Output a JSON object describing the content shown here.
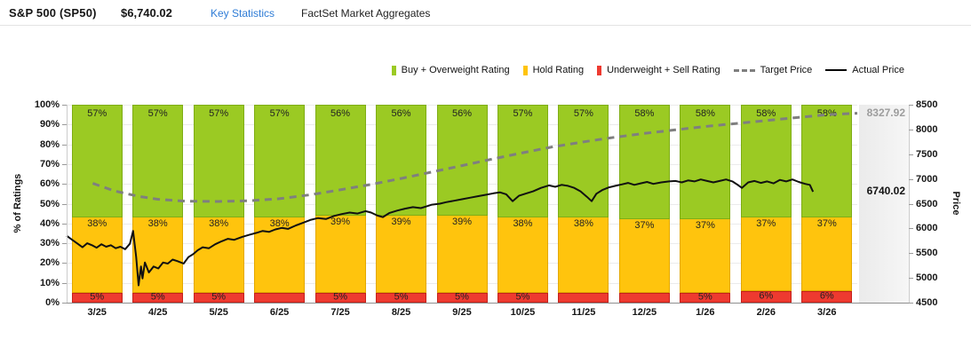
{
  "header": {
    "title": "S&P 500 (SP50)",
    "price": "$6,740.02",
    "key_statistics_label": "Key Statistics",
    "source_label": "FactSet Market Aggregates"
  },
  "legend": {
    "items": [
      {
        "label": "Buy + Overweight Rating",
        "swatch": "bar",
        "color": "#9BCA23"
      },
      {
        "label": "Hold Rating",
        "swatch": "bar",
        "color": "#FFC40D"
      },
      {
        "label": "Underweight + Sell Rating",
        "swatch": "bar",
        "color": "#EE3A30"
      },
      {
        "label": "Target Price",
        "swatch": "dashed-line",
        "color": "#7F7F7F"
      },
      {
        "label": "Actual Price",
        "swatch": "solid-line",
        "color": "#000000"
      }
    ]
  },
  "chart_data": {
    "type": "combo: stacked-bar + line",
    "categories": [
      "3/25",
      "4/25",
      "5/25",
      "6/25",
      "7/25",
      "8/25",
      "9/25",
      "10/25",
      "11/25",
      "12/25",
      "1/26",
      "2/26",
      "3/26"
    ],
    "series": [
      {
        "name": "Buy + Overweight Rating",
        "type": "bar",
        "axis": "percent",
        "color": "#9BCA23",
        "values": [
          57,
          57,
          57,
          57,
          56,
          56,
          56,
          57,
          57,
          58,
          58,
          58,
          58
        ],
        "labels": [
          "57%",
          "57%",
          "57%",
          "57%",
          "56%",
          "56%",
          "56%",
          "57%",
          "57%",
          "58%",
          "58%",
          "58%",
          "58%"
        ]
      },
      {
        "name": "Hold Rating",
        "type": "bar",
        "axis": "percent",
        "color": "#FFC40D",
        "values": [
          38,
          38,
          38,
          38,
          39,
          39,
          39,
          38,
          38,
          37,
          37,
          37,
          37
        ],
        "labels": [
          "38%",
          "38%",
          "38%",
          "38%",
          "39%",
          "39%",
          "39%",
          "38%",
          "38%",
          "37%",
          "37%",
          "37%",
          "37%"
        ]
      },
      {
        "name": "Underweight + Sell Rating",
        "type": "bar",
        "axis": "percent",
        "color": "#EE3A30",
        "values": [
          5,
          5,
          5,
          5,
          5,
          5,
          5,
          5,
          5,
          5,
          5,
          6,
          6
        ],
        "labels": [
          "5%",
          "5%",
          "5%",
          "",
          "5%",
          "5%",
          "5%",
          "5%",
          "",
          "",
          "5%",
          "6%",
          "6%"
        ]
      },
      {
        "name": "Target Price",
        "type": "line",
        "style": "dashed",
        "axis": "price",
        "color": "#7F7F7F",
        "points": [
          [
            0.033,
            6910
          ],
          [
            0.06,
            6760
          ],
          [
            0.09,
            6650
          ],
          [
            0.115,
            6590
          ],
          [
            0.15,
            6550
          ],
          [
            0.192,
            6545
          ],
          [
            0.231,
            6560
          ],
          [
            0.269,
            6600
          ],
          [
            0.308,
            6680
          ],
          [
            0.346,
            6780
          ],
          [
            0.385,
            6890
          ],
          [
            0.423,
            7010
          ],
          [
            0.462,
            7140
          ],
          [
            0.5,
            7270
          ],
          [
            0.538,
            7400
          ],
          [
            0.577,
            7530
          ],
          [
            0.615,
            7650
          ],
          [
            0.654,
            7750
          ],
          [
            0.692,
            7840
          ],
          [
            0.731,
            7920
          ],
          [
            0.769,
            7990
          ],
          [
            0.808,
            8060
          ],
          [
            0.846,
            8120
          ],
          [
            0.885,
            8180
          ],
          [
            0.923,
            8240
          ],
          [
            0.962,
            8300
          ],
          [
            1.0,
            8327.92
          ]
        ]
      },
      {
        "name": "Actual Price",
        "type": "line",
        "style": "solid",
        "axis": "price",
        "color": "#111111",
        "points": [
          [
            0.0,
            5850
          ],
          [
            0.008,
            5760
          ],
          [
            0.014,
            5690
          ],
          [
            0.02,
            5620
          ],
          [
            0.026,
            5700
          ],
          [
            0.032,
            5660
          ],
          [
            0.038,
            5610
          ],
          [
            0.044,
            5680
          ],
          [
            0.05,
            5630
          ],
          [
            0.056,
            5660
          ],
          [
            0.062,
            5600
          ],
          [
            0.068,
            5630
          ],
          [
            0.074,
            5580
          ],
          [
            0.08,
            5690
          ],
          [
            0.084,
            5950
          ],
          [
            0.088,
            5420
          ],
          [
            0.091,
            4850
          ],
          [
            0.094,
            5230
          ],
          [
            0.096,
            4990
          ],
          [
            0.099,
            5310
          ],
          [
            0.104,
            5110
          ],
          [
            0.11,
            5230
          ],
          [
            0.116,
            5190
          ],
          [
            0.122,
            5310
          ],
          [
            0.128,
            5290
          ],
          [
            0.134,
            5370
          ],
          [
            0.14,
            5340
          ],
          [
            0.148,
            5290
          ],
          [
            0.154,
            5420
          ],
          [
            0.16,
            5480
          ],
          [
            0.166,
            5560
          ],
          [
            0.172,
            5620
          ],
          [
            0.18,
            5600
          ],
          [
            0.188,
            5680
          ],
          [
            0.196,
            5740
          ],
          [
            0.204,
            5790
          ],
          [
            0.212,
            5770
          ],
          [
            0.222,
            5830
          ],
          [
            0.231,
            5870
          ],
          [
            0.24,
            5910
          ],
          [
            0.248,
            5950
          ],
          [
            0.256,
            5930
          ],
          [
            0.264,
            5980
          ],
          [
            0.272,
            6010
          ],
          [
            0.28,
            5990
          ],
          [
            0.29,
            6060
          ],
          [
            0.3,
            6120
          ],
          [
            0.308,
            6170
          ],
          [
            0.318,
            6210
          ],
          [
            0.328,
            6190
          ],
          [
            0.338,
            6250
          ],
          [
            0.348,
            6290
          ],
          [
            0.358,
            6320
          ],
          [
            0.368,
            6300
          ],
          [
            0.378,
            6350
          ],
          [
            0.385,
            6320
          ],
          [
            0.393,
            6260
          ],
          [
            0.4,
            6230
          ],
          [
            0.408,
            6310
          ],
          [
            0.418,
            6360
          ],
          [
            0.428,
            6400
          ],
          [
            0.438,
            6430
          ],
          [
            0.448,
            6410
          ],
          [
            0.456,
            6450
          ],
          [
            0.462,
            6480
          ],
          [
            0.472,
            6500
          ],
          [
            0.48,
            6530
          ],
          [
            0.49,
            6560
          ],
          [
            0.5,
            6590
          ],
          [
            0.51,
            6620
          ],
          [
            0.52,
            6650
          ],
          [
            0.53,
            6680
          ],
          [
            0.54,
            6710
          ],
          [
            0.548,
            6730
          ],
          [
            0.556,
            6690
          ],
          [
            0.564,
            6550
          ],
          [
            0.572,
            6660
          ],
          [
            0.58,
            6700
          ],
          [
            0.59,
            6750
          ],
          [
            0.6,
            6820
          ],
          [
            0.61,
            6870
          ],
          [
            0.618,
            6840
          ],
          [
            0.626,
            6880
          ],
          [
            0.634,
            6860
          ],
          [
            0.642,
            6820
          ],
          [
            0.65,
            6750
          ],
          [
            0.658,
            6640
          ],
          [
            0.664,
            6550
          ],
          [
            0.67,
            6700
          ],
          [
            0.678,
            6780
          ],
          [
            0.686,
            6830
          ],
          [
            0.694,
            6860
          ],
          [
            0.702,
            6890
          ],
          [
            0.71,
            6920
          ],
          [
            0.718,
            6880
          ],
          [
            0.726,
            6910
          ],
          [
            0.734,
            6940
          ],
          [
            0.742,
            6900
          ],
          [
            0.752,
            6930
          ],
          [
            0.762,
            6950
          ],
          [
            0.77,
            6960
          ],
          [
            0.778,
            6930
          ],
          [
            0.786,
            6970
          ],
          [
            0.794,
            6950
          ],
          [
            0.802,
            6990
          ],
          [
            0.81,
            6960
          ],
          [
            0.818,
            6930
          ],
          [
            0.826,
            6960
          ],
          [
            0.834,
            6990
          ],
          [
            0.842,
            6950
          ],
          [
            0.848,
            6890
          ],
          [
            0.854,
            6820
          ],
          [
            0.862,
            6930
          ],
          [
            0.87,
            6960
          ],
          [
            0.878,
            6920
          ],
          [
            0.886,
            6950
          ],
          [
            0.894,
            6910
          ],
          [
            0.902,
            6980
          ],
          [
            0.91,
            6950
          ],
          [
            0.918,
            6990
          ],
          [
            0.926,
            6940
          ],
          [
            0.934,
            6900
          ],
          [
            0.94,
            6880
          ],
          [
            0.944,
            6740
          ]
        ]
      }
    ],
    "left_axis": {
      "title": "% of Ratings",
      "min": 0,
      "max": 100,
      "tick_step": 10,
      "tick_suffix": "%"
    },
    "right_axis": {
      "title": "Price",
      "min": 4500,
      "max": 8500,
      "tick_step": 500
    },
    "annotations": {
      "target_price_label": "8327.92",
      "target_price_value": 8327.92,
      "actual_price_label": "6740.02",
      "actual_price_value": 6740.02
    },
    "grid": true,
    "legend_position": "top-right"
  }
}
